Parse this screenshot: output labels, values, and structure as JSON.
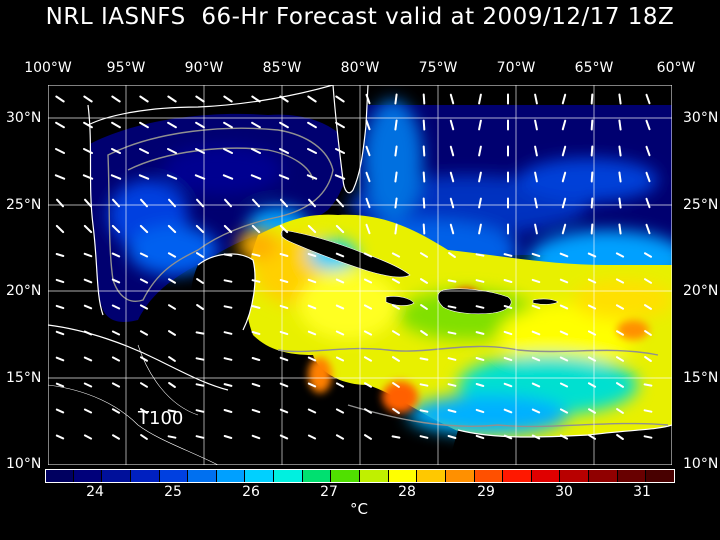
{
  "title": "NRL IASNFS  66-Hr Forecast valid at 2009/12/17 18Z",
  "model_label": "T100",
  "unit_label": "°C",
  "lon_labels": [
    "100°W",
    "95°W",
    "90°W",
    "85°W",
    "80°W",
    "75°W",
    "70°W",
    "65°W",
    "60°W"
  ],
  "lat_labels": [
    "30°N",
    "25°N",
    "20°N",
    "15°N",
    "10°N"
  ],
  "colorbar": {
    "tick_labels": [
      "24",
      "25",
      "26",
      "27",
      "28",
      "29",
      "30",
      "31"
    ],
    "colors": [
      "#000060",
      "#00007a",
      "#00109a",
      "#0020c0",
      "#0040e0",
      "#0070f0",
      "#00a0ff",
      "#00d0ff",
      "#00f0e0",
      "#00e070",
      "#50e000",
      "#c0f000",
      "#ffff00",
      "#ffc800",
      "#ff9000",
      "#ff5000",
      "#ff1800",
      "#e00000",
      "#b80000",
      "#900000",
      "#680000",
      "#480000"
    ]
  },
  "colors": {
    "land": "#000000",
    "coast": "#ffffff",
    "grid": "#ffffff",
    "contour": "#909090"
  }
}
